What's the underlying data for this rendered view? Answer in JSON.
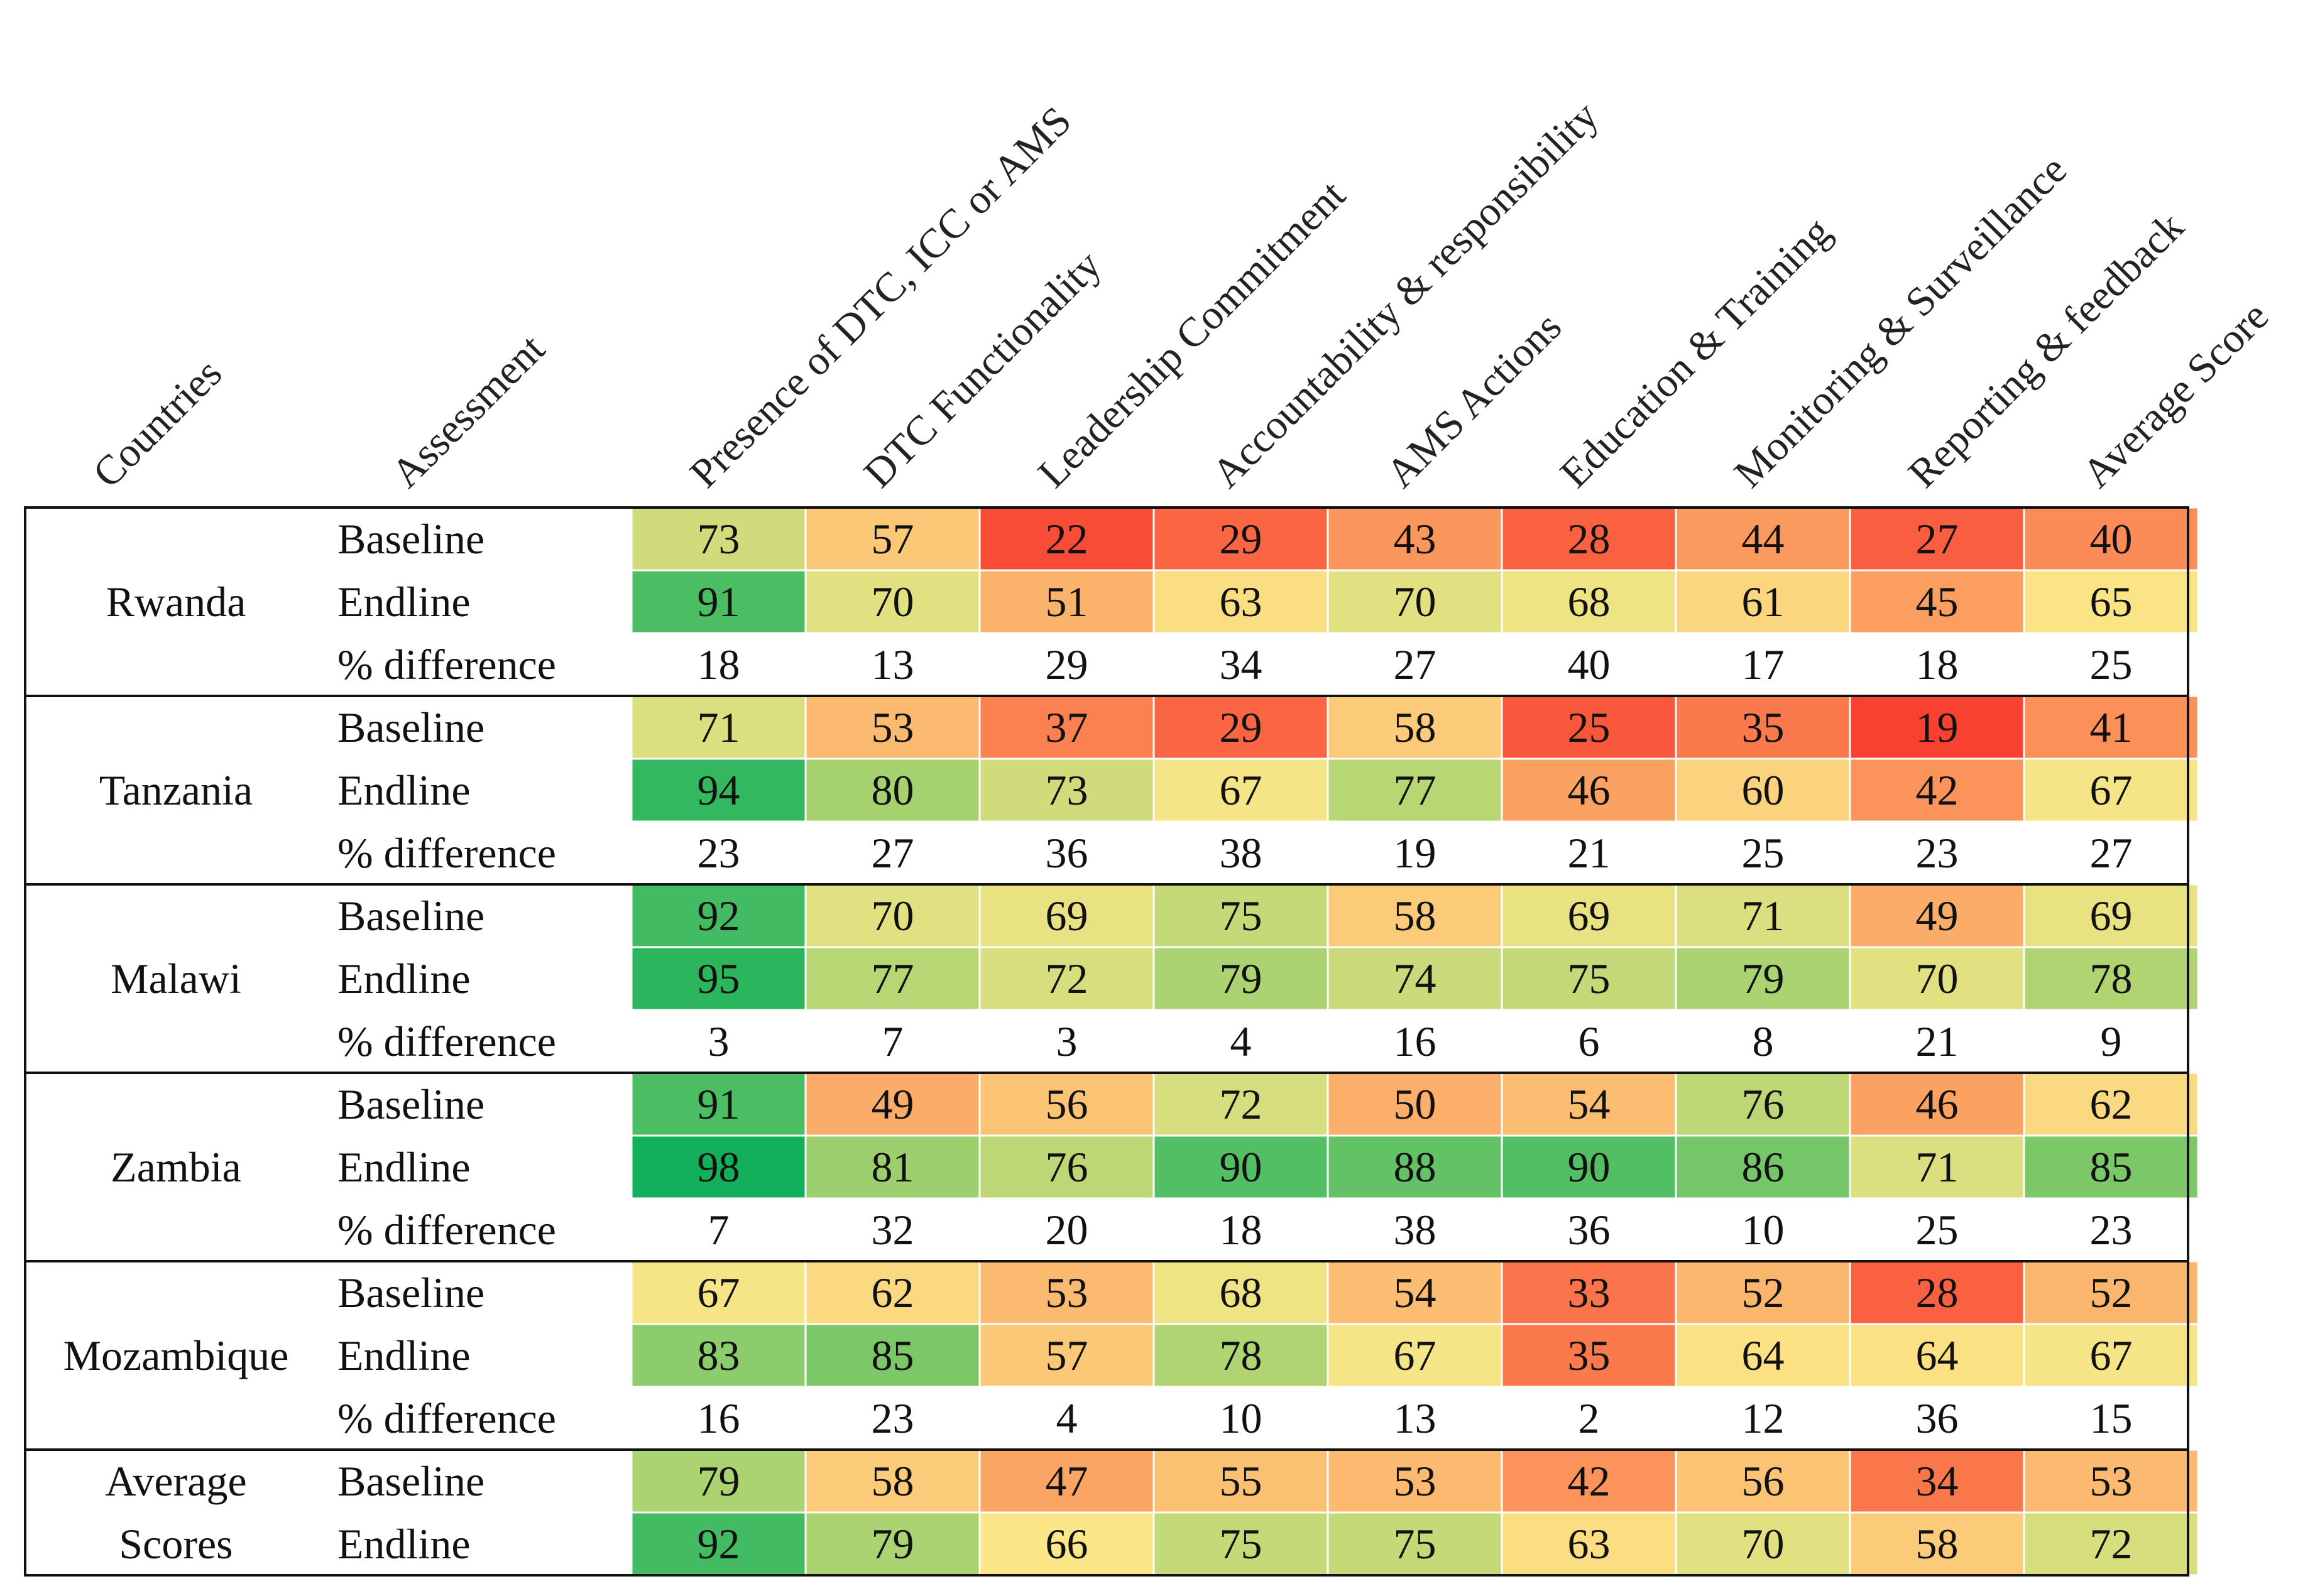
{
  "chart_data": {
    "type": "table",
    "title": "",
    "columns": [
      "Countries",
      "Assessment",
      "Presence of DTC, ICC or AMS",
      "DTC Functionality",
      "Leadership Commitment",
      "Accountability & responsibility",
      "AMS Actions",
      "Education & Training",
      "Monitoring & Surveillance",
      "Reporting & feedback",
      "Average Score"
    ],
    "groups": [
      {
        "country": [
          "Rwanda"
        ],
        "rows": [
          {
            "assessment": "Baseline",
            "values": [
              73,
              57,
              22,
              29,
              43,
              28,
              44,
              27,
              40
            ]
          },
          {
            "assessment": "Endline",
            "values": [
              91,
              70,
              51,
              63,
              70,
              68,
              61,
              45,
              65
            ]
          },
          {
            "assessment": "% difference",
            "values": [
              18,
              13,
              29,
              34,
              27,
              40,
              17,
              18,
              25
            ]
          }
        ]
      },
      {
        "country": [
          "Tanzania"
        ],
        "rows": [
          {
            "assessment": "Baseline",
            "values": [
              71,
              53,
              37,
              29,
              58,
              25,
              35,
              19,
              41
            ]
          },
          {
            "assessment": "Endline",
            "values": [
              94,
              80,
              73,
              67,
              77,
              46,
              60,
              42,
              67
            ]
          },
          {
            "assessment": "% difference",
            "values": [
              23,
              27,
              36,
              38,
              19,
              21,
              25,
              23,
              27
            ]
          }
        ]
      },
      {
        "country": [
          "Malawi"
        ],
        "rows": [
          {
            "assessment": "Baseline",
            "values": [
              92,
              70,
              69,
              75,
              58,
              69,
              71,
              49,
              69
            ]
          },
          {
            "assessment": "Endline",
            "values": [
              95,
              77,
              72,
              79,
              74,
              75,
              79,
              70,
              78
            ]
          },
          {
            "assessment": "% difference",
            "values": [
              3,
              7,
              3,
              4,
              16,
              6,
              8,
              21,
              9
            ]
          }
        ]
      },
      {
        "country": [
          "Zambia"
        ],
        "rows": [
          {
            "assessment": "Baseline",
            "values": [
              91,
              49,
              56,
              72,
              50,
              54,
              76,
              46,
              62
            ]
          },
          {
            "assessment": "Endline",
            "values": [
              98,
              81,
              76,
              90,
              88,
              90,
              86,
              71,
              85
            ]
          },
          {
            "assessment": "% difference",
            "values": [
              7,
              32,
              20,
              18,
              38,
              36,
              10,
              25,
              23
            ]
          }
        ]
      },
      {
        "country": [
          "Mozambique"
        ],
        "rows": [
          {
            "assessment": "Baseline",
            "values": [
              67,
              62,
              53,
              68,
              54,
              33,
              52,
              28,
              52
            ]
          },
          {
            "assessment": "Endline",
            "values": [
              83,
              85,
              57,
              78,
              67,
              35,
              64,
              64,
              67
            ]
          },
          {
            "assessment": "% difference",
            "values": [
              16,
              23,
              4,
              10,
              13,
              2,
              12,
              36,
              15
            ]
          }
        ]
      },
      {
        "country": [
          "Average",
          "Scores"
        ],
        "rows": [
          {
            "assessment": "Baseline",
            "values": [
              79,
              58,
              47,
              55,
              53,
              42,
              56,
              34,
              53
            ]
          },
          {
            "assessment": "Endline",
            "values": [
              92,
              79,
              66,
              75,
              75,
              63,
              70,
              58,
              72
            ]
          }
        ]
      }
    ],
    "color_scale": {
      "low": "#f8332a",
      "mid_low": "#fb8c57",
      "mid": "#fbe788",
      "mid_high": "#a5d16f",
      "high": "#12b05b",
      "difference_row": "#ffffff"
    }
  }
}
